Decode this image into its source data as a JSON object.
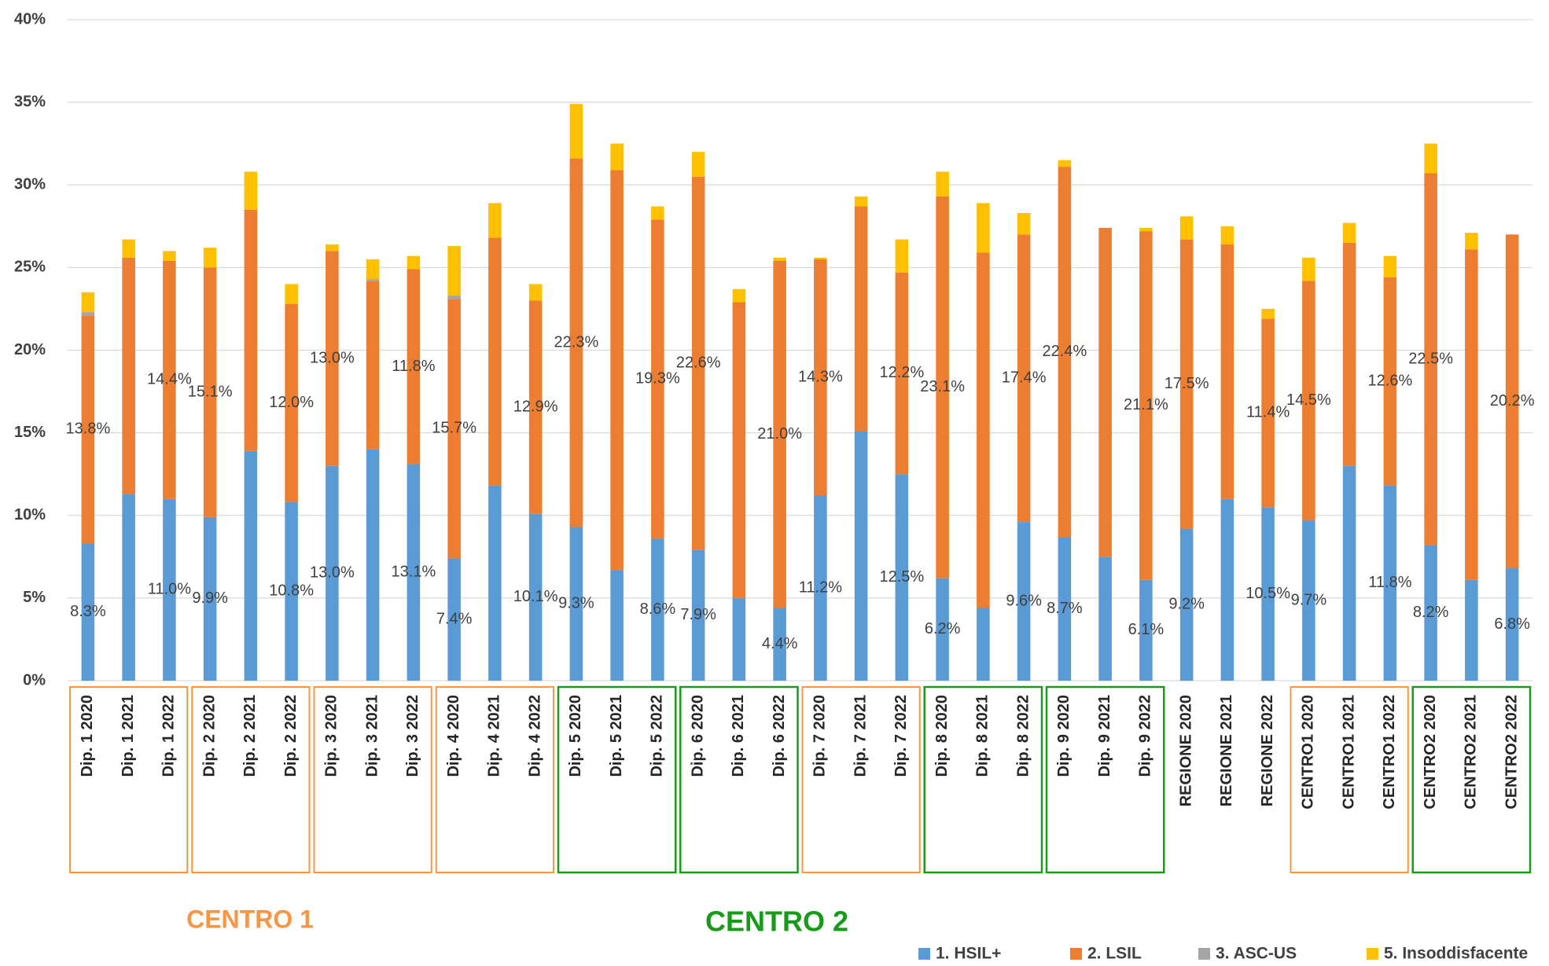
{
  "chart_data": {
    "type": "stacked_bar",
    "categories": [
      "Dip. 1 2020",
      "Dip. 1 2021",
      "Dip. 1 2022",
      "Dip. 2 2020",
      "Dip. 2 2021",
      "Dip. 2 2022",
      "Dip. 3 2020",
      "Dip. 3 2021",
      "Dip. 3 2022",
      "Dip. 4 2020",
      "Dip. 4 2021",
      "Dip. 4 2022",
      "Dip. 5 2020",
      "Dip. 5 2021",
      "Dip. 5 2022",
      "Dip. 6 2020",
      "Dip. 6 2021",
      "Dip. 6 2022",
      "Dip. 7 2020",
      "Dip. 7 2021",
      "Dip. 7 2022",
      "Dip. 8 2020",
      "Dip. 8 2021",
      "Dip. 8 2022",
      "Dip. 9 2020",
      "Dip. 9 2021",
      "Dip. 9 2022",
      "REGIONE 2020",
      "REGIONE 2021",
      "REGIONE 2022",
      "CENTRO1 2020",
      "CENTRO1 2021",
      "CENTRO1 2022",
      "CENTRO2 2020",
      "CENTRO2 2021",
      "CENTRO2 2022"
    ],
    "series": [
      {
        "name": "1. HSIL+",
        "color": "#5b9bd5",
        "values": [
          8.3,
          11.3,
          11.0,
          9.9,
          13.9,
          10.8,
          13.0,
          14.0,
          13.1,
          7.4,
          11.8,
          10.1,
          9.3,
          6.7,
          8.6,
          7.9,
          5.0,
          4.4,
          11.2,
          15.1,
          12.5,
          6.2,
          4.4,
          9.6,
          8.7,
          7.5,
          6.1,
          9.2,
          11.0,
          10.5,
          9.7,
          13.0,
          11.8,
          8.2,
          6.1,
          6.8
        ],
        "value_labels": [
          "8.3%",
          null,
          "11.0%",
          "9.9%",
          null,
          "10.8%",
          "13.0%",
          null,
          "13.1%",
          "7.4%",
          null,
          "10.1%",
          "9.3%",
          null,
          "8.6%",
          "7.9%",
          null,
          "4.4%",
          "11.2%",
          null,
          "12.5%",
          "6.2%",
          null,
          "9.6%",
          "8.7%",
          null,
          "6.1%",
          "9.2%",
          null,
          "10.5%",
          "9.7%",
          null,
          "11.8%",
          "8.2%",
          null,
          "6.8%"
        ]
      },
      {
        "name": "2. LSIL",
        "color": "#ed7d31",
        "values": [
          13.8,
          14.3,
          14.4,
          15.1,
          14.6,
          12.0,
          13.0,
          10.2,
          11.8,
          15.7,
          15.0,
          12.9,
          22.3,
          24.2,
          19.3,
          22.6,
          17.9,
          21.0,
          14.3,
          13.6,
          12.2,
          23.1,
          21.5,
          17.4,
          22.4,
          19.9,
          21.1,
          17.5,
          15.4,
          11.4,
          14.5,
          13.5,
          12.6,
          22.5,
          20.0,
          20.2
        ],
        "value_labels": [
          "13.8%",
          null,
          "14.4%",
          "15.1%",
          null,
          "12.0%",
          "13.0%",
          null,
          "11.8%",
          "15.7%",
          null,
          "12.9%",
          "22.3%",
          null,
          "19.3%",
          "22.6%",
          null,
          "21.0%",
          "14.3%",
          null,
          "12.2%",
          "23.1%",
          null,
          "17.4%",
          "22.4%",
          null,
          "21.1%",
          "17.5%",
          null,
          "11.4%",
          "14.5%",
          null,
          "12.6%",
          "22.5%",
          null,
          "20.2%"
        ]
      },
      {
        "name": "3. ASC-US",
        "color": "#a5a5a5",
        "values": [
          0.2,
          0,
          0,
          0,
          0,
          0,
          0,
          0.1,
          0,
          0.2,
          0,
          0,
          0,
          0,
          0,
          0,
          0,
          0,
          0,
          0,
          0,
          0,
          0,
          0,
          0,
          0,
          0,
          0,
          0,
          0,
          0,
          0,
          0,
          0,
          0,
          0
        ]
      },
      {
        "name": "5. Insoddisfacente",
        "color": "#ffc000",
        "values": [
          1.2,
          1.1,
          0.6,
          1.2,
          2.3,
          1.2,
          0.4,
          1.2,
          0.8,
          3.0,
          2.1,
          1.0,
          3.3,
          1.6,
          0.8,
          1.5,
          0.8,
          0.2,
          0.1,
          0.6,
          2.0,
          1.5,
          3.0,
          1.3,
          0.4,
          0,
          0.2,
          1.4,
          1.1,
          0.6,
          1.4,
          1.2,
          1.3,
          1.8,
          1.0,
          0
        ]
      }
    ],
    "ylim": [
      0,
      40
    ],
    "yticks": [
      {
        "value": 0,
        "label": "0%"
      },
      {
        "value": 5,
        "label": "5%"
      },
      {
        "value": 10,
        "label": "10%"
      },
      {
        "value": 15,
        "label": "15%"
      },
      {
        "value": 20,
        "label": "20%"
      },
      {
        "value": 25,
        "label": "25%"
      },
      {
        "value": 30,
        "label": "30%"
      },
      {
        "value": 35,
        "label": "35%"
      },
      {
        "value": 40,
        "label": "40%"
      }
    ],
    "grid": true,
    "legend": "bottom-right",
    "annotations": [
      {
        "text": "CENTRO 1",
        "color": "#f79646"
      },
      {
        "text": "CENTRO 2",
        "color": "#1a9a1a"
      }
    ]
  }
}
